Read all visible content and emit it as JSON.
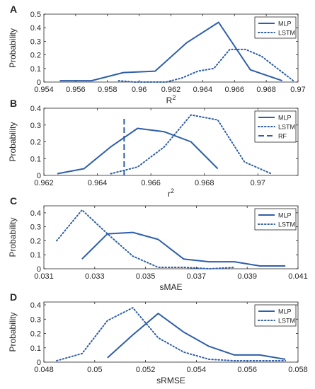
{
  "colors": {
    "series": "#2e5fa8",
    "axis": "#262626"
  },
  "chart_data": [
    {
      "panel_letter": "A",
      "type": "line",
      "xlabel": "R",
      "xlabel_sup": "2",
      "ylabel": "Probability",
      "xlim": [
        0.954,
        0.97
      ],
      "ylim": [
        0,
        0.5
      ],
      "xticks": [
        0.954,
        0.956,
        0.958,
        0.96,
        0.962,
        0.964,
        0.966,
        0.968,
        0.97
      ],
      "xtick_labels": [
        "0.954",
        "0.956",
        "0.958",
        "0.96",
        "0.962",
        "0.964",
        "0.966",
        "0.968",
        "0.97"
      ],
      "yticks": [
        0,
        0.1,
        0.2,
        0.3,
        0.4,
        0.5
      ],
      "ytick_labels": [
        "0",
        "0.1",
        "0.2",
        "0.3",
        "0.4",
        "0.5"
      ],
      "legend": "top-right",
      "series": [
        {
          "name": "MLP",
          "style": "solid",
          "x": [
            0.955,
            0.957,
            0.959,
            0.961,
            0.963,
            0.965,
            0.967,
            0.969
          ],
          "y": [
            0.01,
            0.01,
            0.07,
            0.08,
            0.29,
            0.44,
            0.09,
            0.01
          ]
        },
        {
          "name": "LSTM",
          "style": "dotted",
          "x": [
            0.9587,
            0.9597,
            0.9607,
            0.9617,
            0.9627,
            0.9637,
            0.9647,
            0.9657,
            0.9667,
            0.9677,
            0.9697
          ],
          "y": [
            0.01,
            0.0,
            0.0,
            0.0,
            0.03,
            0.08,
            0.1,
            0.24,
            0.24,
            0.19,
            0.01
          ]
        }
      ]
    },
    {
      "panel_letter": "B",
      "type": "line",
      "xlabel": "r",
      "xlabel_sup": "2",
      "ylabel": "Probability",
      "xlim": [
        0.962,
        0.9715
      ],
      "ylim": [
        0,
        0.4
      ],
      "xticks": [
        0.962,
        0.964,
        0.966,
        0.968,
        0.97
      ],
      "xtick_labels": [
        "0.962",
        "0.964",
        "0.966",
        "0.968",
        "0.97"
      ],
      "yticks": [
        0,
        0.1,
        0.2,
        0.3,
        0.4
      ],
      "ytick_labels": [
        "0",
        "0.1",
        "0.2",
        "0.3",
        "0.4"
      ],
      "legend": "top-right",
      "series": [
        {
          "name": "MLP",
          "style": "solid",
          "x": [
            0.9625,
            0.9635,
            0.9645,
            0.9655,
            0.9665,
            0.9675,
            0.9685
          ],
          "y": [
            0.01,
            0.04,
            0.17,
            0.28,
            0.26,
            0.2,
            0.04
          ]
        },
        {
          "name": "LSTM",
          "style": "dotted",
          "x": [
            0.9645,
            0.9655,
            0.9665,
            0.9675,
            0.9685,
            0.9695,
            0.9705
          ],
          "y": [
            0.01,
            0.05,
            0.17,
            0.36,
            0.33,
            0.08,
            0.01
          ]
        },
        {
          "name": "RF",
          "style": "dashed",
          "vline_x": 0.965,
          "y": [
            0,
            0.34
          ]
        }
      ]
    },
    {
      "panel_letter": "C",
      "type": "line",
      "xlabel": "sMAE",
      "xlabel_sup": "",
      "ylabel": "Probability",
      "xlim": [
        0.031,
        0.041
      ],
      "ylim": [
        0,
        0.45
      ],
      "xticks": [
        0.031,
        0.033,
        0.035,
        0.037,
        0.039,
        0.041
      ],
      "xtick_labels": [
        "0.031",
        "0.033",
        "0.035",
        "0.037",
        "0.039",
        "0.041"
      ],
      "yticks": [
        0,
        0.1,
        0.2,
        0.3,
        0.4
      ],
      "ytick_labels": [
        "0",
        "0.1",
        "0.2",
        "0.3",
        "0.4"
      ],
      "legend": "top-right",
      "series": [
        {
          "name": "MLP",
          "style": "solid",
          "x": [
            0.0325,
            0.0335,
            0.0345,
            0.0355,
            0.0365,
            0.0375,
            0.0385,
            0.0395,
            0.0405
          ],
          "y": [
            0.07,
            0.25,
            0.26,
            0.21,
            0.07,
            0.05,
            0.05,
            0.02,
            0.02
          ]
        },
        {
          "name": "LSTM",
          "style": "dotted",
          "x": [
            0.0315,
            0.0325,
            0.0335,
            0.0345,
            0.0355,
            0.0365,
            0.0375,
            0.0385
          ],
          "y": [
            0.2,
            0.42,
            0.25,
            0.09,
            0.01,
            0.01,
            0.0,
            0.01
          ]
        }
      ]
    },
    {
      "panel_letter": "D",
      "type": "line",
      "xlabel": "sRMSE",
      "xlabel_sup": "",
      "ylabel": "Probability",
      "xlim": [
        0.048,
        0.058
      ],
      "ylim": [
        0,
        0.42
      ],
      "xticks": [
        0.048,
        0.05,
        0.052,
        0.054,
        0.056,
        0.058
      ],
      "xtick_labels": [
        "0.048",
        "0.05",
        "0.052",
        "0.054",
        "0.056",
        "0.058"
      ],
      "yticks": [
        0,
        0.1,
        0.2,
        0.3,
        0.4
      ],
      "ytick_labels": [
        "0",
        "0.1",
        "0.2",
        "0.3",
        "0.4"
      ],
      "legend": "top-right",
      "series": [
        {
          "name": "MLP",
          "style": "solid",
          "x": [
            0.0505,
            0.0515,
            0.0525,
            0.0535,
            0.0545,
            0.0555,
            0.0565,
            0.0575
          ],
          "y": [
            0.03,
            0.19,
            0.34,
            0.21,
            0.11,
            0.05,
            0.05,
            0.02
          ]
        },
        {
          "name": "LSTM",
          "style": "dotted",
          "x": [
            0.0485,
            0.0495,
            0.0505,
            0.0515,
            0.0525,
            0.0535,
            0.0545,
            0.0555,
            0.0565,
            0.0575
          ],
          "y": [
            0.01,
            0.06,
            0.29,
            0.38,
            0.17,
            0.07,
            0.02,
            0.01,
            0.01,
            0.01
          ]
        }
      ]
    }
  ]
}
